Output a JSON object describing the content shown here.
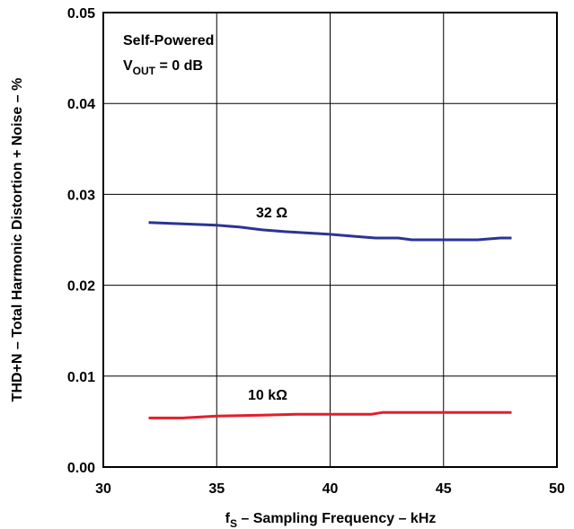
{
  "chart_data": {
    "type": "line",
    "xlabel": {
      "prefix": "f",
      "sub": "S",
      "rest": " – Sampling Frequency – kHz"
    },
    "ylabel": "THD+N – Total Harmonic Distortion + Noise – %",
    "xlim": [
      30,
      50
    ],
    "ylim": [
      0,
      0.05
    ],
    "x_ticks": [
      "30",
      "35",
      "40",
      "45",
      "50"
    ],
    "y_ticks": [
      "0.00",
      "0.01",
      "0.02",
      "0.03",
      "0.04",
      "0.05"
    ],
    "grid": true,
    "annotation": {
      "line1": "Self-Powered",
      "line2_prefix": "V",
      "line2_sub": "OUT",
      "line2_rest": " = 0 dB"
    },
    "series": [
      {
        "name": "32 Ω",
        "color": "#2b3494",
        "x": [
          32,
          34,
          35,
          36,
          37,
          38,
          40,
          41,
          42,
          43,
          43.6,
          44,
          45,
          46,
          46.5,
          47,
          47.5,
          48
        ],
        "y": [
          0.0269,
          0.0267,
          0.0266,
          0.0264,
          0.0261,
          0.0259,
          0.0256,
          0.0254,
          0.0252,
          0.0252,
          0.025,
          0.025,
          0.025,
          0.025,
          0.025,
          0.0251,
          0.0252,
          0.0252
        ]
      },
      {
        "name": "10 kΩ",
        "color": "#e41e2b",
        "x": [
          32,
          33.5,
          35,
          37,
          38.5,
          40,
          41.8,
          42.3,
          44,
          46,
          48
        ],
        "y": [
          0.0054,
          0.0054,
          0.0056,
          0.0057,
          0.0058,
          0.0058,
          0.0058,
          0.006,
          0.006,
          0.006,
          0.006
        ]
      }
    ]
  }
}
